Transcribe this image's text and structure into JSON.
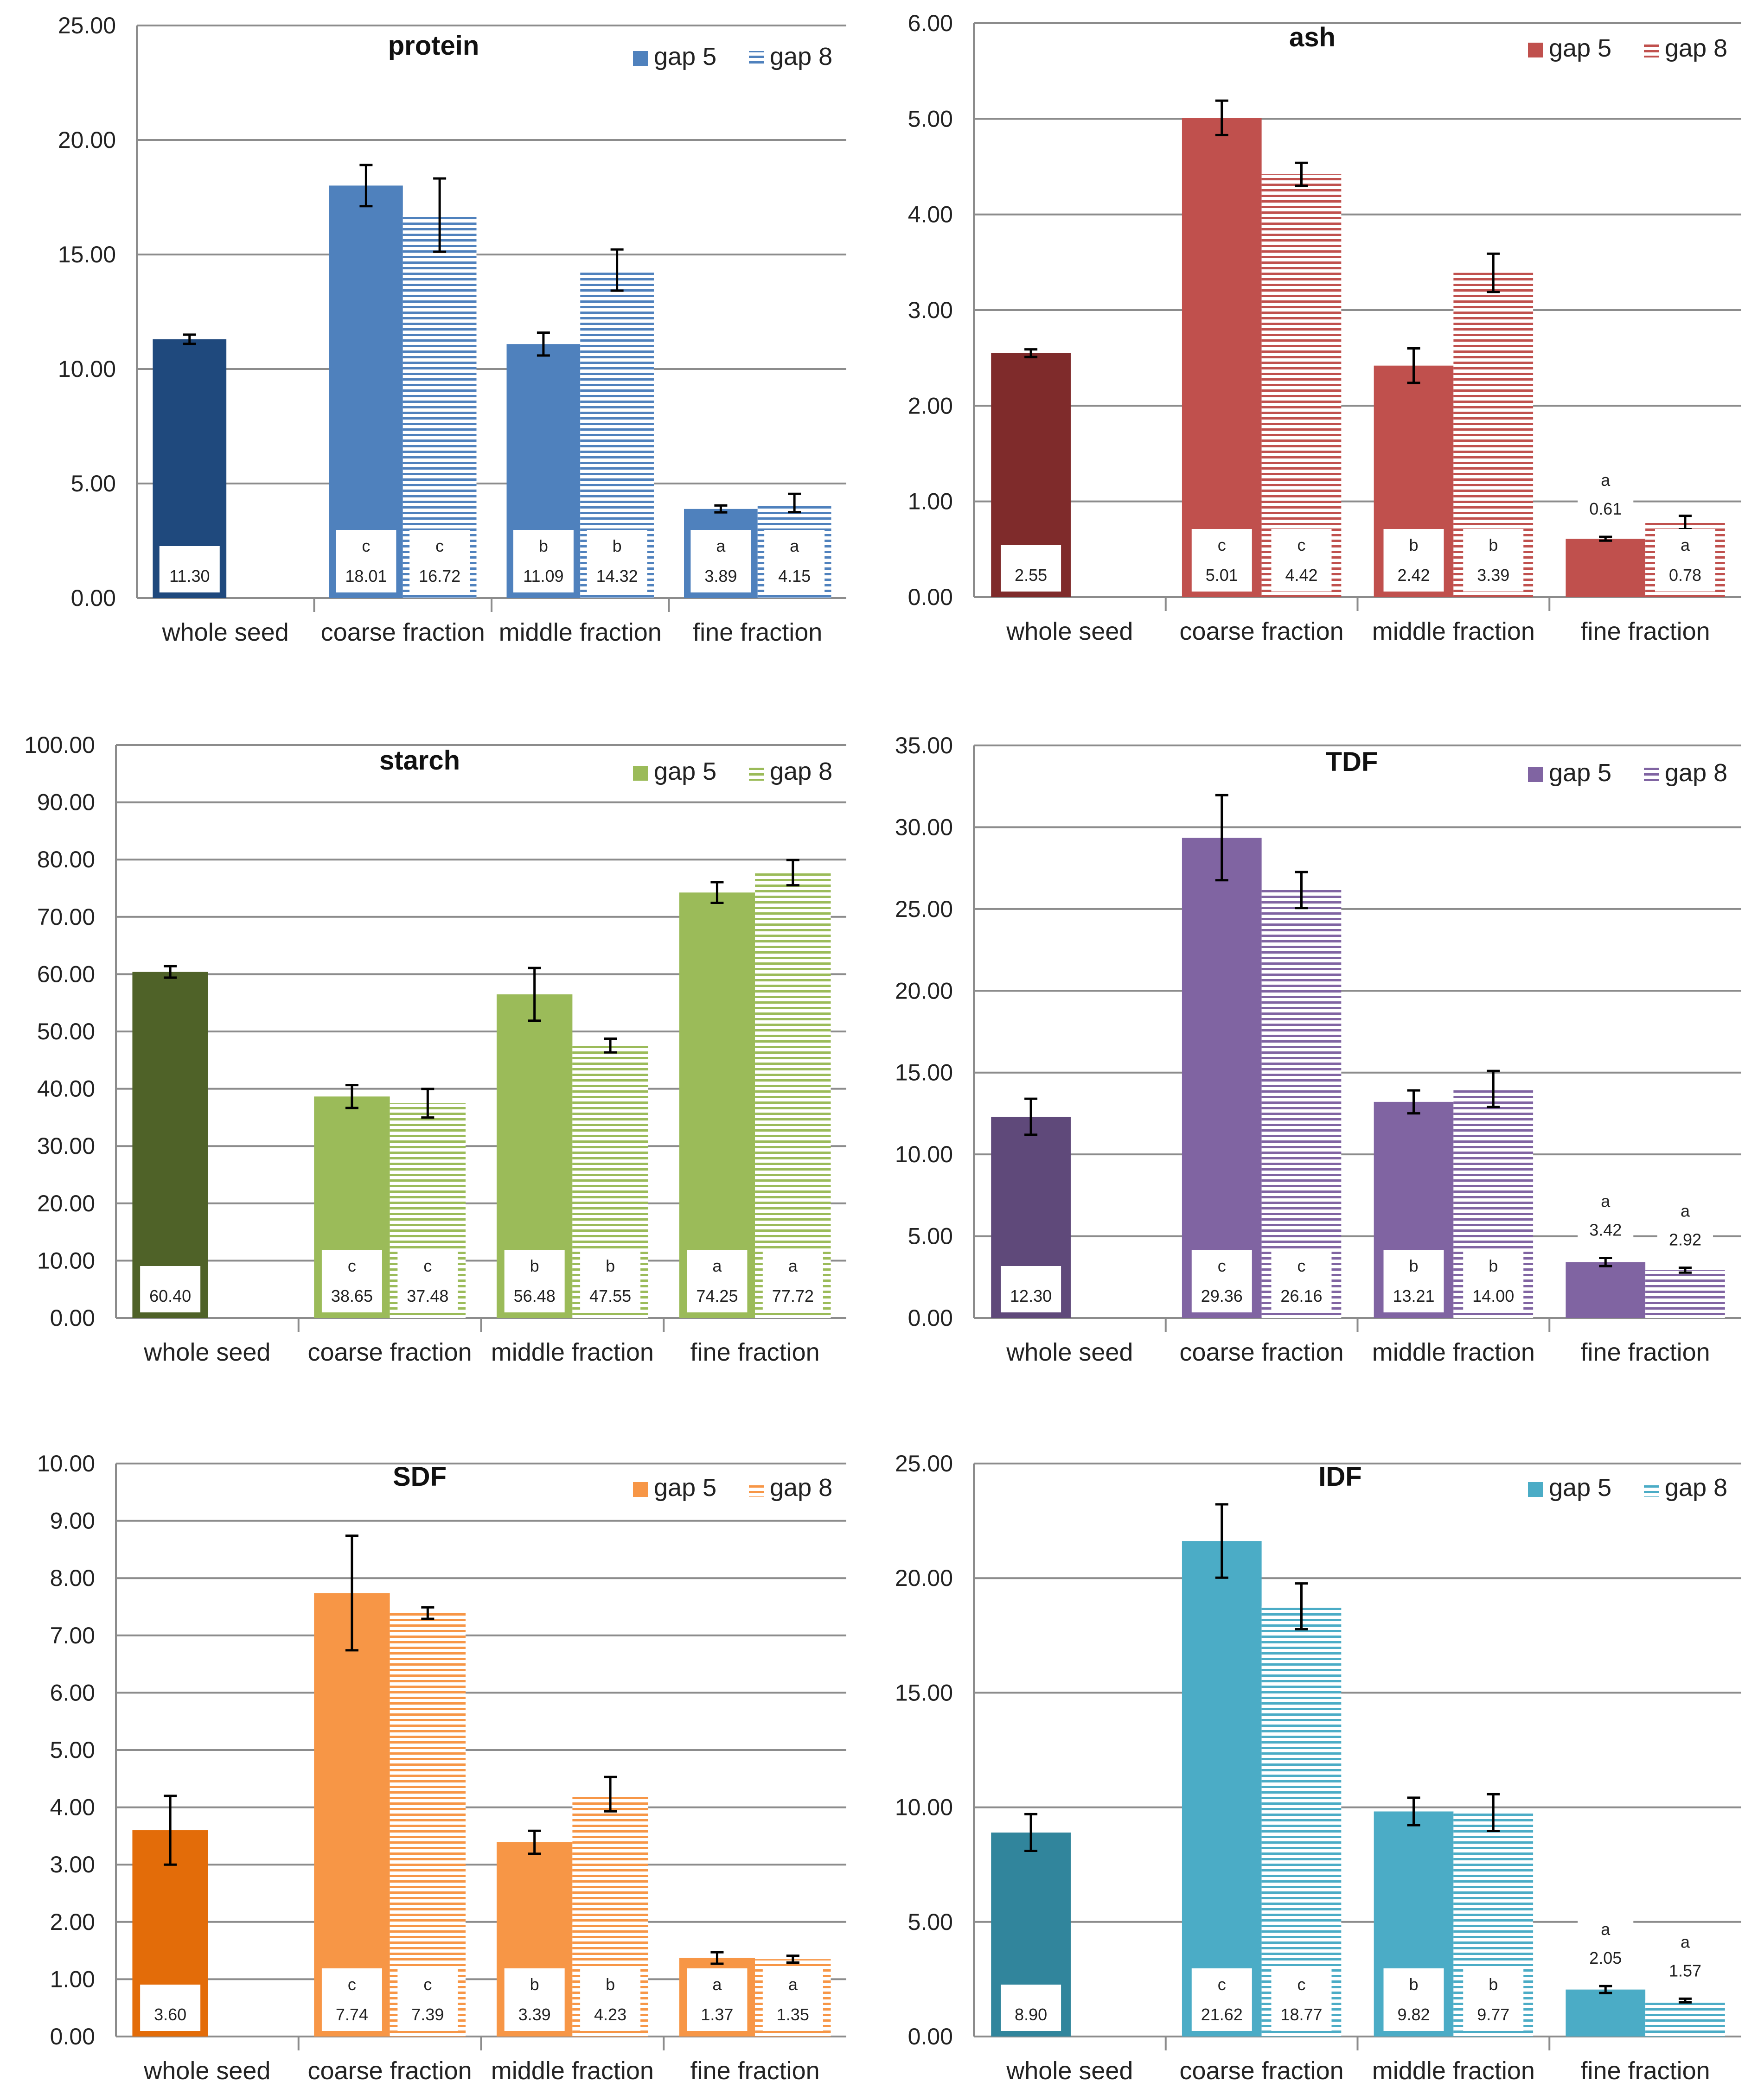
{
  "chart_data": [
    {
      "type": "bar",
      "title": "protein",
      "ylim": [
        0,
        25
      ],
      "yticks": [
        "0.00",
        "5.00",
        "10.00",
        "15.00",
        "20.00",
        "25.00"
      ],
      "categories": [
        "whole seed",
        "coarse fraction",
        "middle fraction",
        "fine fraction"
      ],
      "legend": [
        "gap 5",
        "gap 8"
      ],
      "colors": {
        "whole": "#1F497D",
        "main": "#4F81BD"
      },
      "series": [
        {
          "name": "gap 5",
          "values": [
            11.3,
            18.01,
            11.09,
            3.89
          ],
          "errors": [
            0.2,
            0.9,
            0.5,
            0.15
          ],
          "labels": [
            "11.30",
            "18.01",
            "11.09",
            "3.89"
          ],
          "letters": [
            "",
            "c",
            "b",
            "a"
          ]
        },
        {
          "name": "gap 8",
          "values": [
            null,
            16.72,
            14.32,
            4.15
          ],
          "errors": [
            null,
            1.6,
            0.9,
            0.4
          ],
          "labels": [
            "",
            "16.72",
            "14.32",
            "4.15"
          ],
          "letters": [
            "",
            "c",
            "b",
            "a"
          ]
        }
      ]
    },
    {
      "type": "bar",
      "title": "ash",
      "ylim": [
        0,
        6
      ],
      "yticks": [
        "0.00",
        "1.00",
        "2.00",
        "3.00",
        "4.00",
        "5.00",
        "6.00"
      ],
      "categories": [
        "whole seed",
        "coarse fraction",
        "middle fraction",
        "fine fraction"
      ],
      "legend": [
        "gap 5",
        "gap 8"
      ],
      "colors": {
        "whole": "#7F2B2B",
        "main": "#C0504D"
      },
      "series": [
        {
          "name": "gap 5",
          "values": [
            2.55,
            5.01,
            2.42,
            0.61
          ],
          "errors": [
            0.04,
            0.18,
            0.18,
            0.02
          ],
          "labels": [
            "2.55",
            "5.01",
            "2.42",
            "0.61"
          ],
          "letters": [
            "",
            "c",
            "b",
            "a"
          ]
        },
        {
          "name": "gap 8",
          "values": [
            null,
            4.42,
            3.39,
            0.78
          ],
          "errors": [
            null,
            0.12,
            0.2,
            0.07
          ],
          "labels": [
            "",
            "4.42",
            "3.39",
            "0.78"
          ],
          "letters": [
            "",
            "c",
            "b",
            "a"
          ]
        }
      ]
    },
    {
      "type": "bar",
      "title": "starch",
      "ylim": [
        0,
        100
      ],
      "yticks": [
        "0.00",
        "10.00",
        "20.00",
        "30.00",
        "40.00",
        "50.00",
        "60.00",
        "70.00",
        "80.00",
        "90.00",
        "100.00"
      ],
      "categories": [
        "whole seed",
        "coarse fraction",
        "middle fraction",
        "fine fraction"
      ],
      "legend": [
        "gap 5",
        "gap 8"
      ],
      "colors": {
        "whole": "#4F6228",
        "main": "#9BBB59"
      },
      "series": [
        {
          "name": "gap 5",
          "values": [
            60.4,
            38.65,
            56.48,
            74.25
          ],
          "errors": [
            1.0,
            2.0,
            4.6,
            1.8
          ],
          "labels": [
            "60.40",
            "38.65",
            "56.48",
            "74.25"
          ],
          "letters": [
            "",
            "c",
            "b",
            "a"
          ]
        },
        {
          "name": "gap 8",
          "values": [
            null,
            37.48,
            47.55,
            77.72
          ],
          "errors": [
            null,
            2.5,
            1.2,
            2.2
          ],
          "labels": [
            "",
            "37.48",
            "47.55",
            "77.72"
          ],
          "letters": [
            "",
            "c",
            "b",
            "a"
          ]
        }
      ]
    },
    {
      "type": "bar",
      "title": "TDF",
      "ylim": [
        0,
        35
      ],
      "yticks": [
        "0.00",
        "5.00",
        "10.00",
        "15.00",
        "20.00",
        "25.00",
        "30.00",
        "35.00"
      ],
      "categories": [
        "whole seed",
        "coarse fraction",
        "middle fraction",
        "fine fraction"
      ],
      "legend": [
        "gap 5",
        "gap 8"
      ],
      "colors": {
        "whole": "#5F497A",
        "main": "#8064A2"
      },
      "series": [
        {
          "name": "gap 5",
          "values": [
            12.3,
            29.36,
            13.21,
            3.42
          ],
          "errors": [
            1.1,
            2.6,
            0.7,
            0.25
          ],
          "labels": [
            "12.30",
            "29.36",
            "13.21",
            "3.42"
          ],
          "letters": [
            "",
            "c",
            "b",
            "a"
          ]
        },
        {
          "name": "gap 8",
          "values": [
            null,
            26.16,
            14.0,
            2.92
          ],
          "errors": [
            null,
            1.1,
            1.1,
            0.15
          ],
          "labels": [
            "",
            "26.16",
            "14.00",
            "2.92"
          ],
          "letters": [
            "",
            "c",
            "b",
            "a"
          ]
        }
      ]
    },
    {
      "type": "bar",
      "title": "SDF",
      "ylim": [
        0,
        10
      ],
      "yticks": [
        "0.00",
        "1.00",
        "2.00",
        "3.00",
        "4.00",
        "5.00",
        "6.00",
        "7.00",
        "8.00",
        "9.00",
        "10.00"
      ],
      "categories": [
        "whole seed",
        "coarse fraction",
        "middle fraction",
        "fine fraction"
      ],
      "legend": [
        "gap 5",
        "gap 8"
      ],
      "colors": {
        "whole": "#E36C09",
        "main": "#F79646"
      },
      "series": [
        {
          "name": "gap 5",
          "values": [
            3.6,
            7.74,
            3.39,
            1.37
          ],
          "errors": [
            0.6,
            1.0,
            0.2,
            0.1
          ],
          "labels": [
            "3.60",
            "7.74",
            "3.39",
            "1.37"
          ],
          "letters": [
            "",
            "c",
            "b",
            "a"
          ]
        },
        {
          "name": "gap 8",
          "values": [
            null,
            7.39,
            4.23,
            1.35
          ],
          "errors": [
            null,
            0.1,
            0.3,
            0.06
          ],
          "labels": [
            "",
            "7.39",
            "4.23",
            "1.35"
          ],
          "letters": [
            "",
            "c",
            "b",
            "a"
          ]
        }
      ]
    },
    {
      "type": "bar",
      "title": "IDF",
      "ylim": [
        0,
        25
      ],
      "yticks": [
        "0.00",
        "5.00",
        "10.00",
        "15.00",
        "20.00",
        "25.00"
      ],
      "categories": [
        "whole seed",
        "coarse fraction",
        "middle fraction",
        "fine fraction"
      ],
      "legend": [
        "gap 5",
        "gap 8"
      ],
      "colors": {
        "whole": "#31859C",
        "main": "#4BACC6"
      },
      "series": [
        {
          "name": "gap 5",
          "values": [
            8.9,
            21.62,
            9.82,
            2.05
          ],
          "errors": [
            0.8,
            1.6,
            0.6,
            0.15
          ],
          "labels": [
            "8.90",
            "21.62",
            "9.82",
            "2.05"
          ],
          "letters": [
            "",
            "c",
            "b",
            "a"
          ]
        },
        {
          "name": "gap 8",
          "values": [
            null,
            18.77,
            9.77,
            1.57
          ],
          "errors": [
            null,
            1.0,
            0.8,
            0.08
          ],
          "labels": [
            "",
            "18.77",
            "9.77",
            "1.57"
          ],
          "letters": [
            "",
            "c",
            "b",
            "a"
          ]
        }
      ]
    }
  ]
}
